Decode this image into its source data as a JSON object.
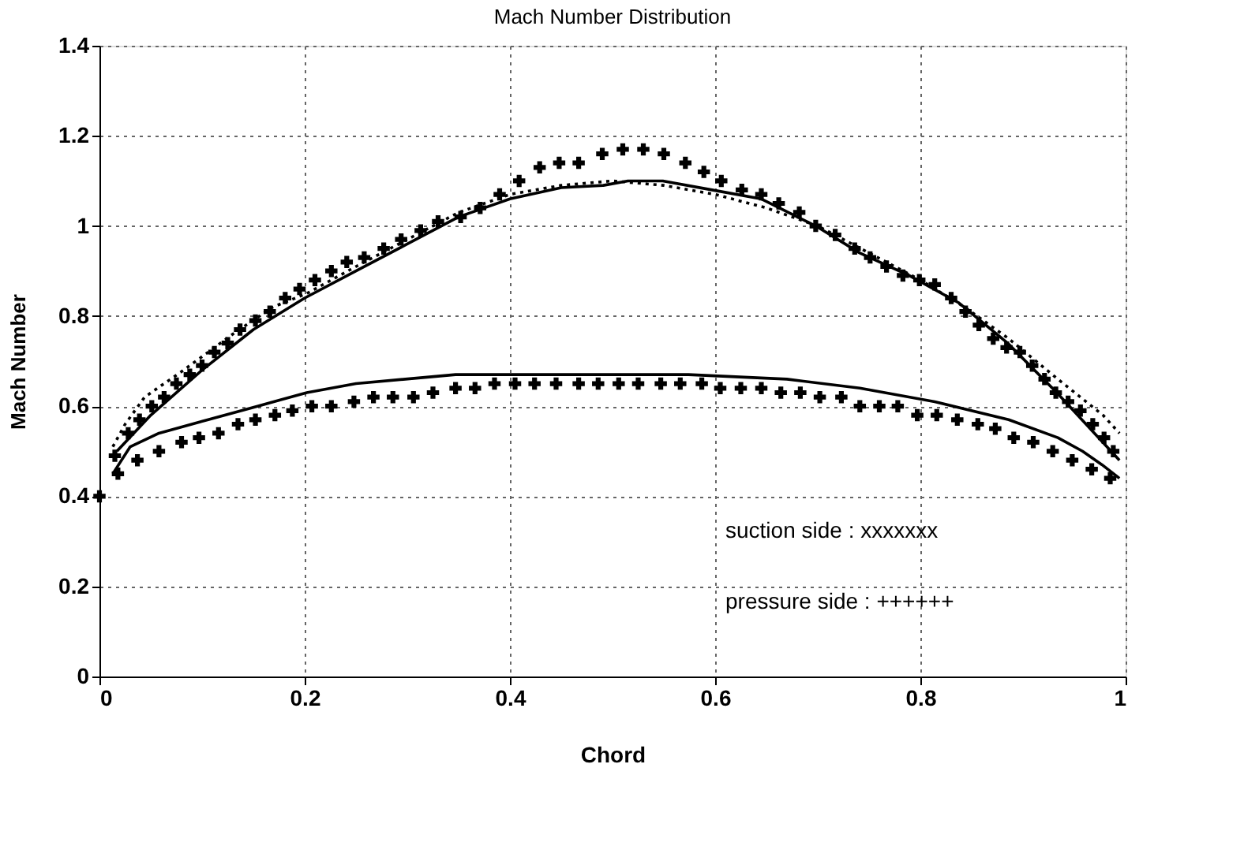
{
  "chart_data": {
    "type": "line",
    "title": "Mach Number Distribution",
    "xlabel": "Chord",
    "ylabel": "Mach Number",
    "xlim": [
      0,
      1
    ],
    "xticks": [
      0,
      0.2,
      0.4,
      0.6,
      0.8,
      1
    ],
    "ylim": [
      0,
      1.4
    ],
    "yticks": [
      0,
      0.2,
      0.4,
      0.6,
      0.8,
      1,
      1.2,
      1.4
    ],
    "grid": true,
    "annotations": [
      "suction side   : xxxxxxx",
      "pressure side : ++++++"
    ],
    "series": [
      {
        "type": "scatter",
        "marker": "cross",
        "color": "#000000",
        "x": [
          0.015,
          0.028,
          0.039,
          0.051,
          0.063,
          0.075,
          0.088,
          0.1,
          0.112,
          0.125,
          0.137,
          0.152,
          0.166,
          0.181,
          0.195,
          0.21,
          0.226,
          0.241,
          0.258,
          0.277,
          0.294,
          0.313,
          0.33,
          0.352,
          0.371,
          0.39,
          0.409,
          0.429,
          0.448,
          0.467,
          0.49,
          0.51,
          0.53,
          0.55,
          0.571,
          0.589,
          0.606,
          0.626,
          0.645,
          0.662,
          0.682,
          0.698,
          0.717,
          0.736,
          0.751,
          0.767,
          0.783,
          0.799,
          0.814,
          0.83,
          0.844,
          0.857,
          0.871,
          0.884,
          0.897,
          0.909,
          0.921,
          0.932,
          0.944,
          0.956,
          0.968,
          0.979,
          0.988
        ],
        "values": [
          0.49,
          0.54,
          0.57,
          0.6,
          0.62,
          0.65,
          0.67,
          0.69,
          0.72,
          0.74,
          0.77,
          0.79,
          0.81,
          0.84,
          0.86,
          0.88,
          0.9,
          0.92,
          0.93,
          0.95,
          0.97,
          0.99,
          1.01,
          1.02,
          1.04,
          1.07,
          1.1,
          1.13,
          1.14,
          1.14,
          1.16,
          1.17,
          1.17,
          1.16,
          1.14,
          1.12,
          1.1,
          1.08,
          1.07,
          1.05,
          1.03,
          1.0,
          0.98,
          0.95,
          0.93,
          0.91,
          0.89,
          0.88,
          0.87,
          0.84,
          0.81,
          0.78,
          0.75,
          0.73,
          0.72,
          0.69,
          0.66,
          0.63,
          0.61,
          0.59,
          0.56,
          0.53,
          0.5
        ]
      },
      {
        "line_style": "dotted",
        "color": "#000000",
        "x": [
          0.013,
          0.025,
          0.044,
          0.082,
          0.13,
          0.169,
          0.202,
          0.25,
          0.3,
          0.35,
          0.4,
          0.45,
          0.5,
          0.55,
          0.6,
          0.65,
          0.7,
          0.75,
          0.8,
          0.843,
          0.886,
          0.934,
          0.978,
          0.994
        ],
        "values": [
          0.51,
          0.56,
          0.62,
          0.68,
          0.76,
          0.82,
          0.85,
          0.91,
          0.97,
          1.03,
          1.07,
          1.09,
          1.1,
          1.09,
          1.07,
          1.04,
          1.0,
          0.94,
          0.88,
          0.82,
          0.75,
          0.66,
          0.58,
          0.54
        ]
      },
      {
        "line_style": "solid",
        "color": "#000000",
        "x": [
          0.017,
          0.05,
          0.1,
          0.15,
          0.2,
          0.25,
          0.3,
          0.35,
          0.4,
          0.45,
          0.491,
          0.515,
          0.549,
          0.597,
          0.645,
          0.698,
          0.741,
          0.789,
          0.837,
          0.885,
          0.933,
          0.994
        ],
        "values": [
          0.5,
          0.58,
          0.68,
          0.77,
          0.84,
          0.9,
          0.96,
          1.02,
          1.06,
          1.085,
          1.09,
          1.1,
          1.1,
          1.08,
          1.06,
          1.0,
          0.94,
          0.89,
          0.83,
          0.74,
          0.63,
          0.48
        ]
      },
      {
        "line_style": "solid",
        "color": "#000000",
        "x": [
          0.013,
          0.03,
          0.058,
          0.106,
          0.154,
          0.202,
          0.25,
          0.298,
          0.347,
          0.404,
          0.491,
          0.574,
          0.67,
          0.741,
          0.814,
          0.886,
          0.934,
          0.958,
          0.977,
          0.994
        ],
        "values": [
          0.45,
          0.51,
          0.54,
          0.57,
          0.6,
          0.63,
          0.65,
          0.66,
          0.67,
          0.67,
          0.67,
          0.67,
          0.66,
          0.64,
          0.61,
          0.57,
          0.53,
          0.5,
          0.47,
          0.44
        ]
      },
      {
        "type": "scatter",
        "marker": "cross",
        "color": "#000000",
        "x": [
          0,
          0.018,
          0.037,
          0.058,
          0.08,
          0.097,
          0.116,
          0.135,
          0.152,
          0.171,
          0.188,
          0.207,
          0.226,
          0.248,
          0.267,
          0.286,
          0.306,
          0.325,
          0.347,
          0.366,
          0.385,
          0.405,
          0.424,
          0.445,
          0.467,
          0.486,
          0.506,
          0.525,
          0.547,
          0.566,
          0.587,
          0.605,
          0.625,
          0.645,
          0.664,
          0.683,
          0.702,
          0.723,
          0.741,
          0.76,
          0.778,
          0.797,
          0.816,
          0.836,
          0.856,
          0.873,
          0.891,
          0.91,
          0.929,
          0.948,
          0.967,
          0.985
        ],
        "values": [
          0.4,
          0.45,
          0.48,
          0.5,
          0.52,
          0.53,
          0.54,
          0.56,
          0.57,
          0.58,
          0.59,
          0.6,
          0.6,
          0.61,
          0.62,
          0.62,
          0.62,
          0.63,
          0.64,
          0.64,
          0.65,
          0.65,
          0.65,
          0.65,
          0.65,
          0.65,
          0.65,
          0.65,
          0.65,
          0.65,
          0.65,
          0.64,
          0.64,
          0.64,
          0.63,
          0.63,
          0.62,
          0.62,
          0.6,
          0.6,
          0.6,
          0.58,
          0.58,
          0.57,
          0.56,
          0.55,
          0.53,
          0.52,
          0.5,
          0.48,
          0.46,
          0.44
        ]
      }
    ]
  }
}
